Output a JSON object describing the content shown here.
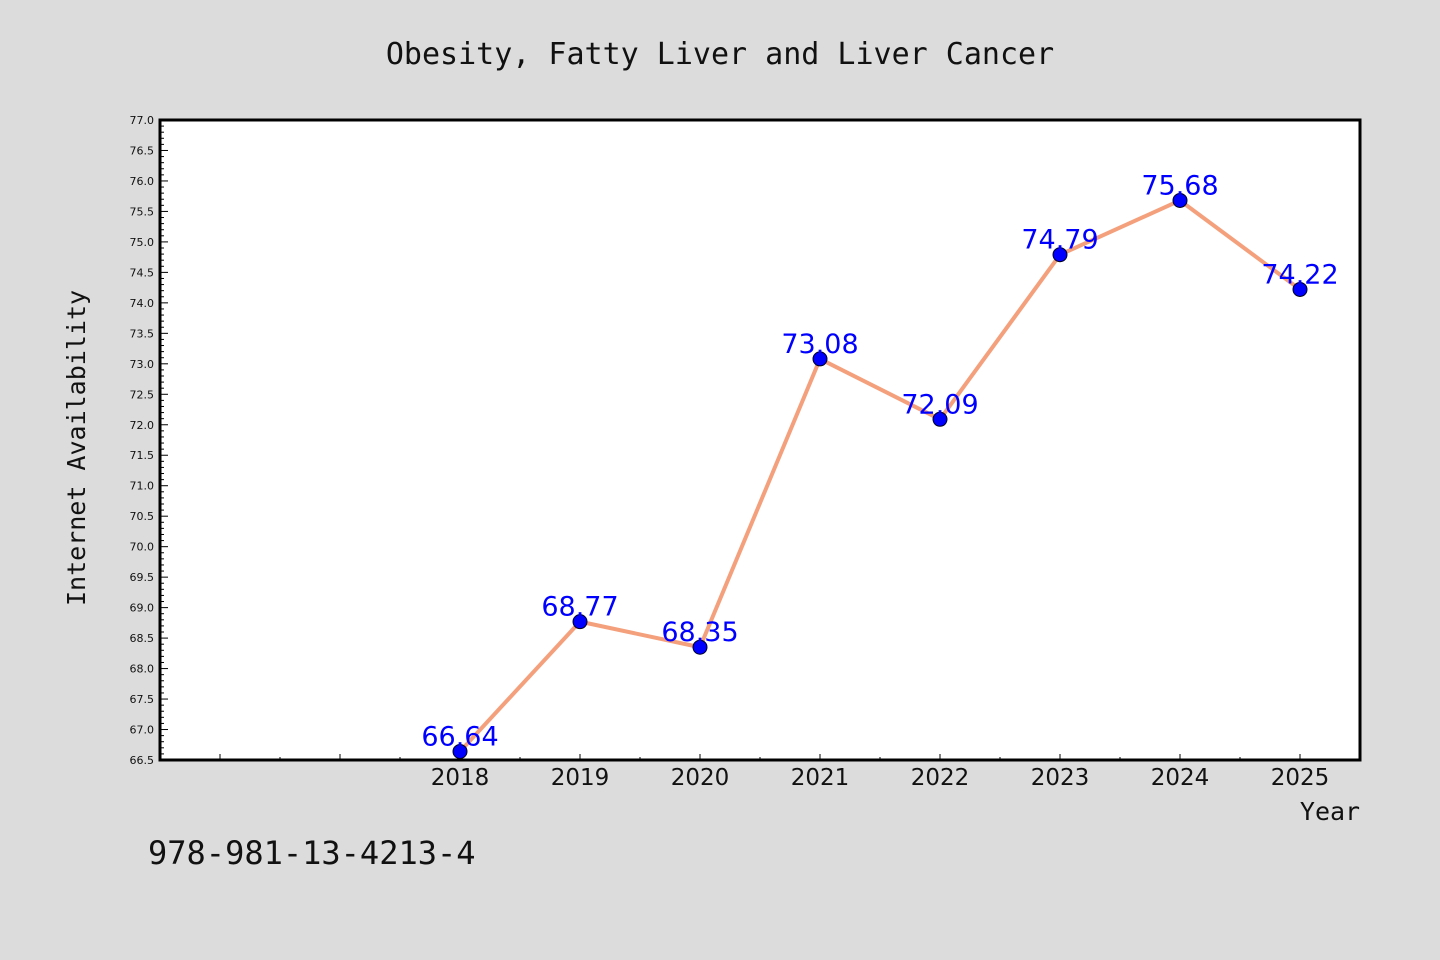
{
  "chart_data": {
    "type": "line",
    "title": "Obesity, Fatty Liver and Liver Cancer",
    "xlabel": "Year",
    "ylabel": "Internet Availability",
    "x": [
      2018,
      2019,
      2020,
      2021,
      2022,
      2023,
      2024,
      2025
    ],
    "x_tick_labels": [
      "2018",
      "2019",
      "2020",
      "2021",
      "2022",
      "2023",
      "2024",
      "2025"
    ],
    "series": [
      {
        "values": [
          66.64,
          68.77,
          68.35,
          73.08,
          72.09,
          74.79,
          75.68,
          74.22
        ],
        "data_labels": [
          "66.64",
          "68.77",
          "68.35",
          "73.08",
          "72.09",
          "74.79",
          "75.68",
          "74.22"
        ],
        "line_color": "#f4a07c",
        "marker_color": "#0000ff",
        "label_color": "#0000ff"
      }
    ],
    "xlim": [
      2015.5,
      2025.5
    ],
    "ylim": [
      66.5,
      77.0
    ],
    "y_tick_labels": [
      "66.5",
      "67.0",
      "67.5",
      "68.0",
      "68.5",
      "69.0",
      "69.5",
      "70.0",
      "70.5",
      "71.0",
      "71.5",
      "72.0",
      "72.5",
      "73.0",
      "73.5",
      "74.0",
      "74.5",
      "75.0",
      "75.5",
      "76.0",
      "76.5",
      "77.0"
    ],
    "grid": false,
    "legend": "none"
  },
  "footer": {
    "code": "978-981-13-4213-4"
  },
  "colors": {
    "background": "#dcdcdc",
    "plot_background": "#ffffff",
    "axis": "#000000"
  }
}
